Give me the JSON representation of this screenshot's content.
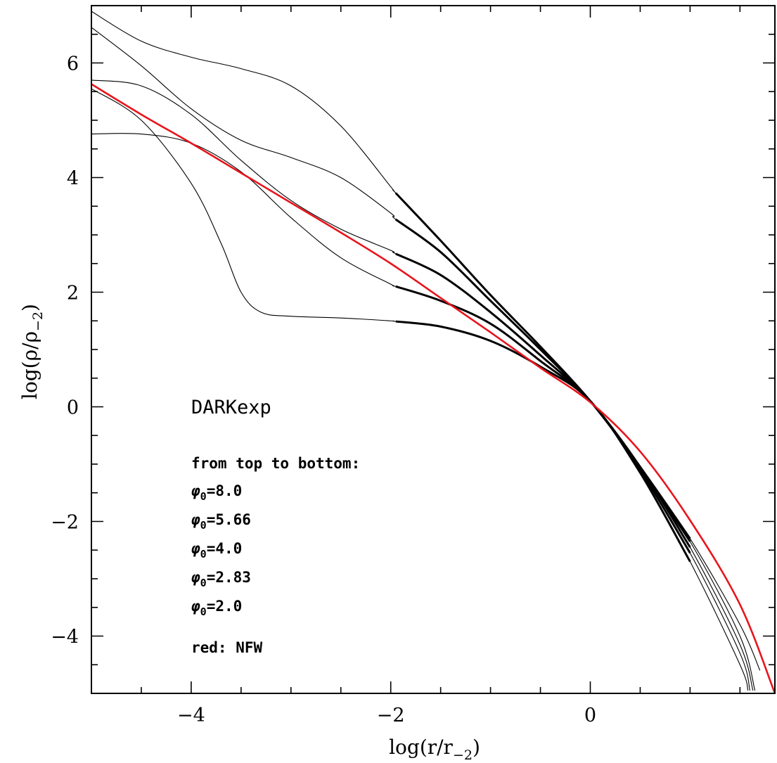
{
  "chart_data": {
    "type": "line",
    "xlabel_main": "log(r/r",
    "xlabel_sub": "−2",
    "xlabel_close": ")",
    "ylabel_main": "log(ρ/ρ",
    "ylabel_sub": "−2",
    "ylabel_close": ")",
    "xlim": [
      -5,
      1.85
    ],
    "ylim": [
      -5,
      7
    ],
    "xticks": [
      {
        "value": -4,
        "label": "−4"
      },
      {
        "value": -2,
        "label": "−2"
      },
      {
        "value": 0,
        "label": "0"
      }
    ],
    "yticks": [
      {
        "value": -4,
        "label": "−4"
      },
      {
        "value": -2,
        "label": "−2"
      },
      {
        "value": 0,
        "label": "0"
      },
      {
        "value": 2,
        "label": "2"
      },
      {
        "value": 4,
        "label": "4"
      },
      {
        "value": 6,
        "label": "6"
      }
    ],
    "x_minor_step": 0.5,
    "y_minor_step": 0.5,
    "grid": false,
    "thick_segment_xrange": [
      -1.95,
      1.0
    ],
    "annotations": {
      "model": "DARKexp",
      "order_note": "from top to bottom:",
      "phi_symbol": "φ",
      "phi_sub": "0",
      "phi_values": [
        "=8.0",
        "=5.66",
        "=4.0",
        "=2.83",
        "=2.0"
      ],
      "nfw_note": "red: NFW"
    },
    "series": [
      {
        "phi0": "8.0",
        "color": "#000000",
        "x": [
          -5.0,
          -4.5,
          -4.0,
          -3.5,
          -3.0,
          -2.5,
          -2.0,
          -1.95,
          -1.5,
          -1.0,
          -0.5,
          0.0,
          0.5,
          1.0,
          1.5,
          1.7
        ],
        "y": [
          6.9,
          6.38,
          6.1,
          5.9,
          5.6,
          4.9,
          3.84,
          3.73,
          2.9,
          1.95,
          1.05,
          0.1,
          -1.05,
          -2.3,
          -3.8,
          -4.6
        ]
      },
      {
        "phi0": "5.66",
        "color": "#000000",
        "x": [
          -5.0,
          -4.5,
          -4.0,
          -3.5,
          -3.0,
          -2.5,
          -2.0,
          -1.95,
          -1.5,
          -1.0,
          -0.5,
          0.0,
          0.5,
          1.0,
          1.5,
          1.65
        ],
        "y": [
          6.62,
          5.95,
          5.2,
          4.65,
          4.35,
          4.0,
          3.38,
          3.27,
          2.7,
          1.85,
          1.0,
          0.1,
          -1.05,
          -2.35,
          -4.0,
          -4.95
        ]
      },
      {
        "phi0": "4.0",
        "color": "#000000",
        "x": [
          -5.0,
          -4.5,
          -4.0,
          -3.5,
          -3.0,
          -2.5,
          -2.0,
          -1.95,
          -1.5,
          -1.0,
          -0.5,
          0.0,
          0.5,
          1.0,
          1.5,
          1.63
        ],
        "y": [
          5.7,
          5.6,
          5.1,
          4.3,
          3.6,
          3.1,
          2.73,
          2.67,
          2.3,
          1.65,
          0.9,
          0.1,
          -1.05,
          -2.45,
          -4.15,
          -4.95
        ]
      },
      {
        "phi0": "2.83",
        "color": "#000000",
        "x": [
          -5.0,
          -4.5,
          -4.0,
          -3.5,
          -3.0,
          -2.5,
          -2.0,
          -1.95,
          -1.5,
          -1.0,
          -0.5,
          0.0,
          0.5,
          1.0,
          1.5,
          1.6
        ],
        "y": [
          4.76,
          4.76,
          4.6,
          4.1,
          3.3,
          2.6,
          2.14,
          2.1,
          1.85,
          1.45,
          0.8,
          0.1,
          -1.1,
          -2.55,
          -4.3,
          -4.95
        ]
      },
      {
        "phi0": "2.0",
        "color": "#000000",
        "x": [
          -5.0,
          -4.5,
          -4.0,
          -3.7,
          -3.5,
          -3.3,
          -3.0,
          -2.5,
          -2.0,
          -1.95,
          -1.5,
          -1.0,
          -0.5,
          0.0,
          0.5,
          1.0,
          1.5,
          1.58
        ],
        "y": [
          5.55,
          5.0,
          3.9,
          2.85,
          2.0,
          1.65,
          1.58,
          1.55,
          1.5,
          1.49,
          1.4,
          1.15,
          0.7,
          0.1,
          -1.15,
          -2.7,
          -4.5,
          -4.95
        ]
      },
      {
        "name": "NFW",
        "color": "#e8141b",
        "x": [
          -5.0,
          -4.5,
          -4.0,
          -3.5,
          -3.0,
          -2.5,
          -2.0,
          -1.5,
          -1.0,
          -0.5,
          0.0,
          0.5,
          1.0,
          1.5,
          1.85
        ],
        "y": [
          5.63,
          5.1,
          4.6,
          4.08,
          3.56,
          3.04,
          2.5,
          1.9,
          1.3,
          0.68,
          0.08,
          -0.78,
          -1.98,
          -3.45,
          -5.0
        ]
      }
    ]
  }
}
